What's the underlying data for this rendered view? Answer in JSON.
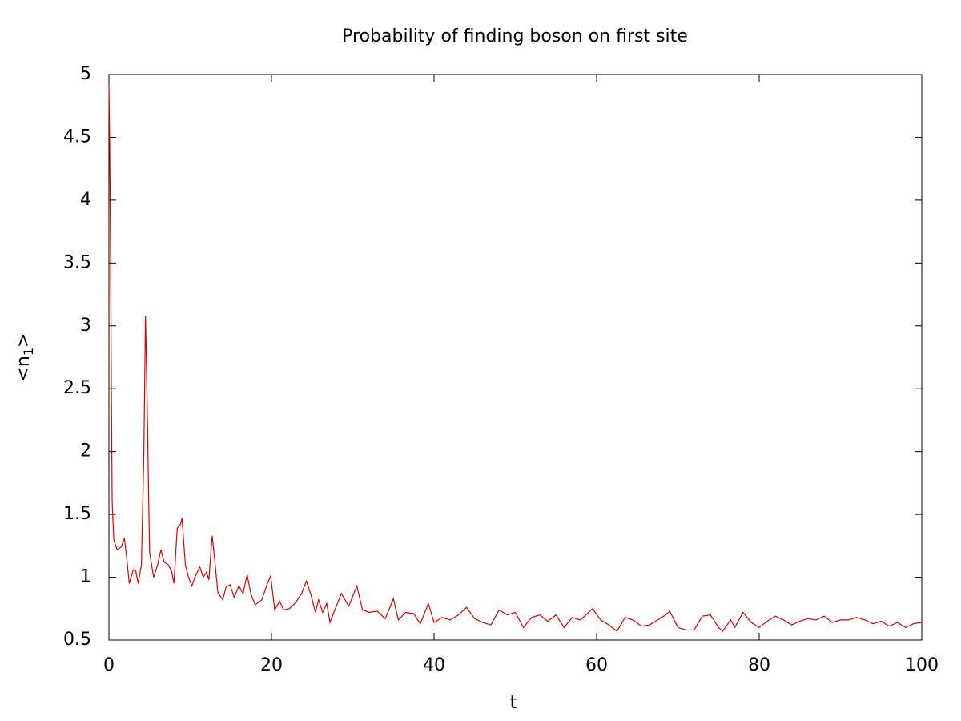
{
  "chart_data": {
    "type": "line",
    "title": "Probability of finding boson on first site",
    "xlabel": "t",
    "ylabel_parts": [
      "<n",
      "1",
      ">"
    ],
    "x": [
      0,
      0.1,
      0.2,
      0.3,
      0.4,
      0.6,
      1.0,
      1.5,
      1.9,
      2.2,
      2.5,
      3.0,
      3.3,
      3.6,
      4.0,
      4.3,
      4.5,
      4.7,
      5.0,
      5.5,
      6.0,
      6.4,
      6.8,
      7.3,
      7.7,
      8.0,
      8.4,
      8.8,
      9.0,
      9.4,
      9.8,
      10.2,
      10.7,
      11.2,
      11.6,
      12.0,
      12.3,
      12.7,
      13.0,
      13.4,
      14.0,
      14.4,
      14.9,
      15.4,
      16.0,
      16.5,
      17.0,
      17.5,
      18.0,
      18.8,
      19.5,
      19.9,
      20.4,
      21.0,
      21.5,
      22.2,
      23.0,
      23.7,
      24.3,
      24.9,
      25.4,
      25.8,
      26.3,
      26.8,
      27.2,
      27.8,
      28.6,
      29.5,
      30.5,
      31.2,
      32.0,
      33.0,
      34.0,
      35.0,
      35.6,
      36.5,
      37.5,
      38.3,
      39.3,
      40.0,
      41.0,
      42.0,
      43.0,
      44.0,
      45.0,
      46.0,
      47.0,
      48.0,
      49.0,
      50.0,
      51.0,
      52.0,
      53.0,
      54.0,
      55.0,
      56.0,
      57.0,
      58.0,
      59.0,
      59.5,
      60.5,
      61.5,
      62.5,
      63.5,
      64.5,
      65.5,
      66.5,
      67.5,
      68.5,
      69.0,
      70.0,
      71.0,
      72.0,
      73.0,
      74.0,
      75.0,
      75.5,
      76.5,
      77.0,
      78.0,
      79.0,
      80.0,
      81.0,
      82.0,
      83.0,
      84.0,
      85.0,
      86.0,
      87.0,
      88.0,
      89.0,
      90.0,
      91.0,
      92.0,
      93.0,
      94.0,
      95.0,
      96.0,
      97.0,
      98.0,
      99.0,
      100.0
    ],
    "series": [
      {
        "color": "#e00000",
        "values": [
          4.93,
          4.4,
          3.6,
          2.5,
          1.6,
          1.3,
          1.22,
          1.24,
          1.31,
          1.15,
          0.95,
          1.06,
          1.05,
          0.95,
          1.1,
          2.0,
          3.08,
          2.4,
          1.2,
          1.0,
          1.1,
          1.22,
          1.12,
          1.1,
          1.05,
          0.95,
          1.39,
          1.42,
          1.47,
          1.1,
          1.0,
          0.93,
          1.02,
          1.08,
          1.0,
          1.04,
          0.98,
          1.33,
          1.15,
          0.88,
          0.82,
          0.92,
          0.94,
          0.84,
          0.93,
          0.87,
          1.02,
          0.86,
          0.78,
          0.82,
          0.95,
          1.01,
          0.74,
          0.81,
          0.74,
          0.75,
          0.8,
          0.87,
          0.97,
          0.85,
          0.72,
          0.82,
          0.72,
          0.79,
          0.64,
          0.74,
          0.87,
          0.77,
          0.93,
          0.74,
          0.72,
          0.73,
          0.67,
          0.83,
          0.66,
          0.72,
          0.71,
          0.63,
          0.79,
          0.64,
          0.68,
          0.66,
          0.7,
          0.76,
          0.67,
          0.64,
          0.62,
          0.74,
          0.7,
          0.72,
          0.6,
          0.68,
          0.7,
          0.65,
          0.7,
          0.6,
          0.68,
          0.66,
          0.72,
          0.75,
          0.66,
          0.62,
          0.57,
          0.68,
          0.66,
          0.61,
          0.62,
          0.66,
          0.7,
          0.73,
          0.6,
          0.58,
          0.58,
          0.69,
          0.7,
          0.6,
          0.57,
          0.66,
          0.6,
          0.72,
          0.64,
          0.6,
          0.65,
          0.69,
          0.66,
          0.62,
          0.65,
          0.67,
          0.66,
          0.69,
          0.64,
          0.66,
          0.66,
          0.68,
          0.66,
          0.63,
          0.65,
          0.61,
          0.64,
          0.6,
          0.63,
          0.64
        ]
      }
    ],
    "xlim": [
      0,
      100
    ],
    "xticks": [
      0,
      20,
      40,
      60,
      80,
      100
    ],
    "ylim": [
      0.5,
      5
    ],
    "yticks": [
      0.5,
      1,
      1.5,
      2,
      2.5,
      3,
      3.5,
      4,
      4.5,
      5
    ],
    "grid": false
  }
}
